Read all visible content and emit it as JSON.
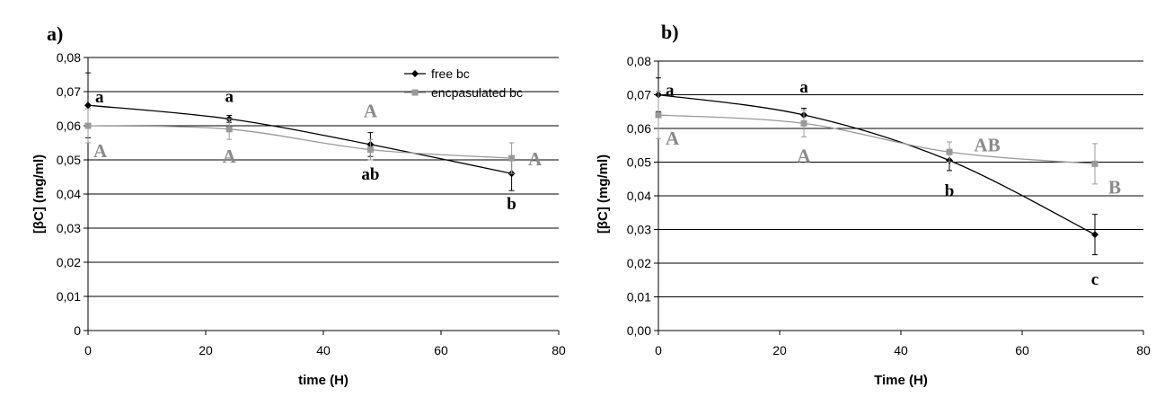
{
  "chart_data": [
    {
      "type": "line",
      "panel_label": "a)",
      "xlabel": "time (H)",
      "ylabel": "[βC] (mg/ml)",
      "xlim": [
        0,
        80
      ],
      "ylim": [
        0,
        0.08
      ],
      "x_ticks": [
        "0",
        "20",
        "40",
        "60",
        "80"
      ],
      "y_ticks": [
        "0",
        "0,01",
        "0,02",
        "0,03",
        "0,04",
        "0,05",
        "0,06",
        "0,07",
        "0,08"
      ],
      "grid": "horizontal",
      "legend_position": "top-right",
      "series": [
        {
          "name": "free bc",
          "color": "#000000",
          "marker": "diamond",
          "x": [
            0,
            24,
            48,
            72
          ],
          "y": [
            0.066,
            0.062,
            0.0545,
            0.046
          ],
          "error": [
            0.0095,
            0.001,
            0.0035,
            0.005
          ],
          "labels": [
            "a",
            "a",
            "ab",
            "b"
          ]
        },
        {
          "name": "encpasulated bc",
          "color": "#999999",
          "marker": "square",
          "x": [
            0,
            24,
            48,
            72
          ],
          "y": [
            0.06,
            0.059,
            0.053,
            0.0505
          ],
          "error": [
            0.005,
            0.003,
            0.003,
            0.0045
          ],
          "labels": [
            "A",
            "A",
            "A",
            "A"
          ]
        }
      ]
    },
    {
      "type": "line",
      "panel_label": "b)",
      "xlabel": "Time (H)",
      "ylabel": "[βC] (mg/ml)",
      "xlim": [
        0,
        80
      ],
      "ylim": [
        0,
        0.08
      ],
      "x_ticks": [
        "0",
        "20",
        "40",
        "60",
        "80"
      ],
      "y_ticks": [
        "0,00",
        "0,01",
        "0,02",
        "0,03",
        "0,04",
        "0,05",
        "0,06",
        "0,07",
        "0,08"
      ],
      "grid": "horizontal",
      "series": [
        {
          "name": "free bc",
          "color": "#000000",
          "marker": "diamond",
          "x": [
            0,
            24,
            48,
            72
          ],
          "y": [
            0.07,
            0.064,
            0.0505,
            0.0285
          ],
          "error": [
            0.005,
            0.002,
            0.003,
            0.006
          ],
          "labels": [
            "a",
            "a",
            "b",
            "c"
          ]
        },
        {
          "name": "encpasulated bc",
          "color": "#999999",
          "marker": "square",
          "x": [
            0,
            24,
            48,
            72
          ],
          "y": [
            0.064,
            0.0615,
            0.053,
            0.0495
          ],
          "error": [
            0.007,
            0.004,
            0.003,
            0.006
          ],
          "labels": [
            "A",
            "A",
            "AB",
            "B"
          ]
        }
      ]
    }
  ]
}
